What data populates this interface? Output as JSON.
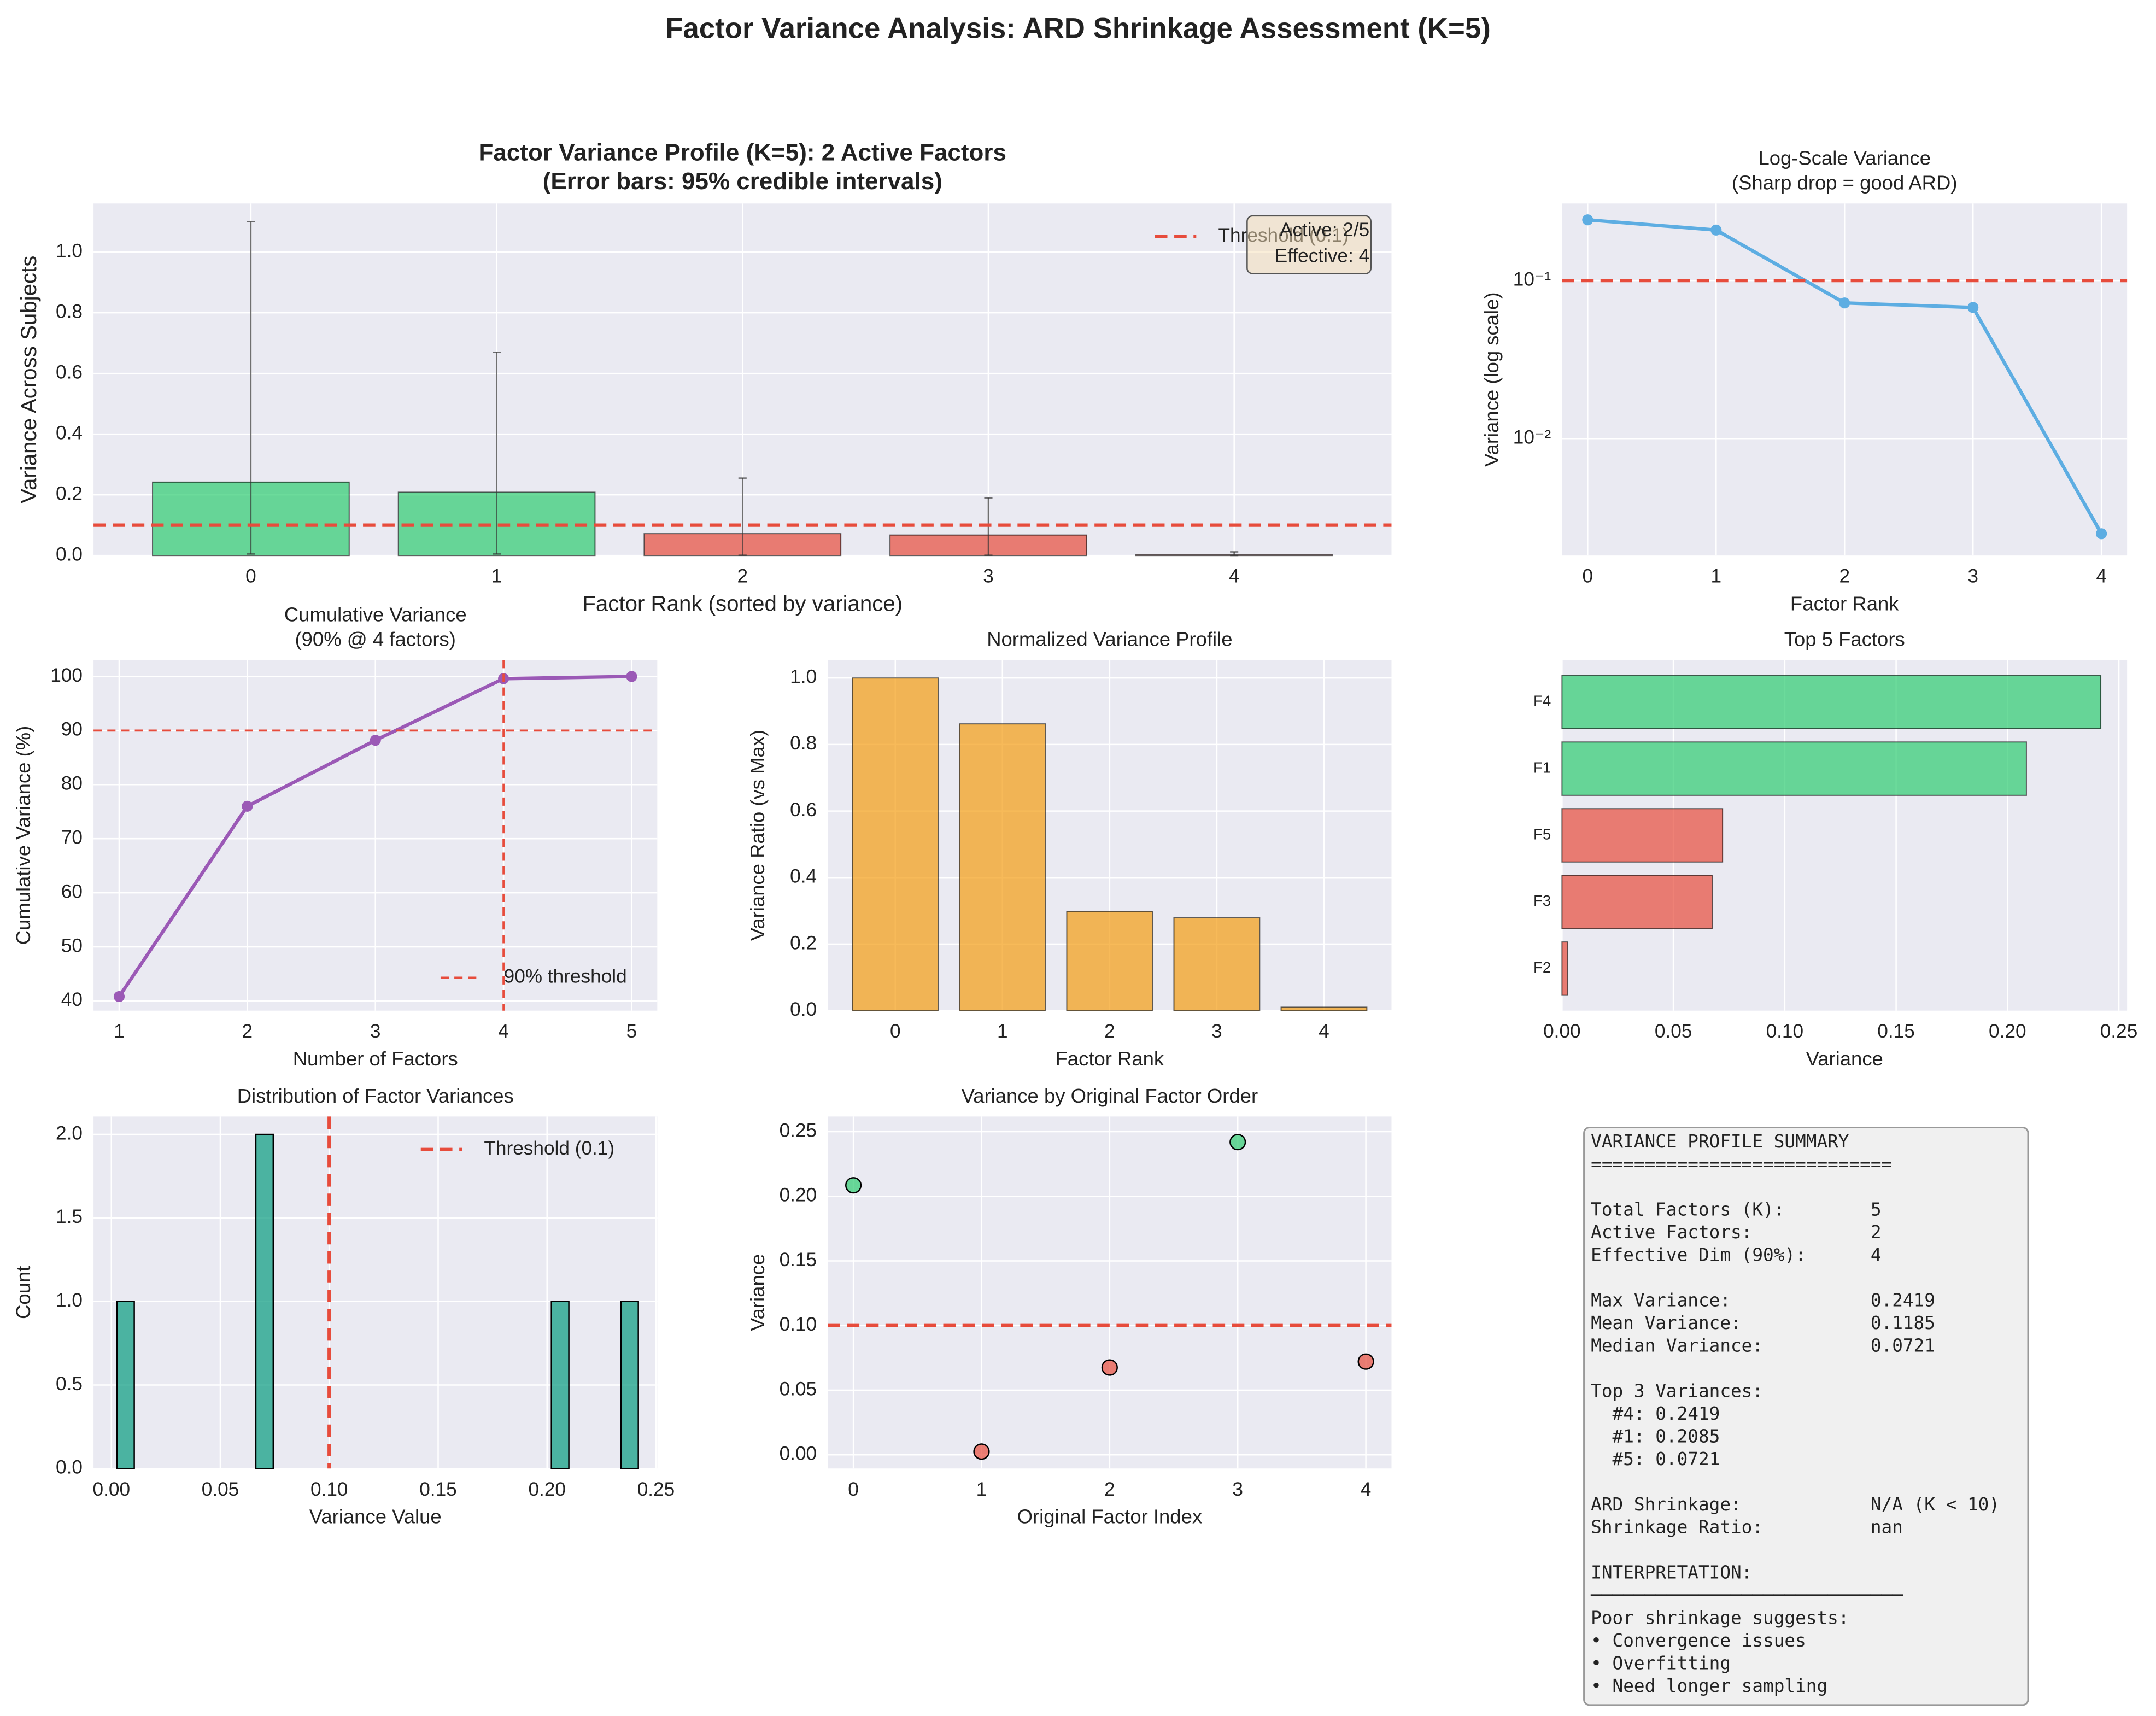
{
  "title": "Factor Variance Analysis: ARD Shrinkage Assessment (K=5)",
  "chart_data": [
    {
      "type": "bar",
      "title": [
        "Factor Variance Profile (K=5): 2 Active Factors",
        "(Error bars: 95% credible intervals)"
      ],
      "x": [
        0,
        1,
        2,
        3,
        4
      ],
      "values": [
        0.2419,
        0.2085,
        0.0721,
        0.0675,
        0.0025
      ],
      "ci_lower": [
        0.005,
        0.005,
        0.001,
        0.001,
        0.0002
      ],
      "ci_upper": [
        1.1,
        0.67,
        0.255,
        0.19,
        0.012
      ],
      "colors": [
        "#2ecc71",
        "#2ecc71",
        "#e74c3c",
        "#e74c3c",
        "#e74c3c"
      ],
      "xlim": [
        -0.64,
        4.64
      ],
      "ylim": [
        0,
        1.16
      ],
      "xticks": [
        0,
        1,
        2,
        3,
        4
      ],
      "yticks": [
        {
          "value": 0,
          "label": "0.0"
        },
        0.2,
        0.4,
        0.6,
        0.8,
        {
          "value": 1,
          "label": "1.0"
        }
      ],
      "xlabel": "Factor Rank (sorted by variance)",
      "ylabel": "Variance Across Subjects",
      "reference_lines": [
        {
          "axis": "y",
          "value": 0.1,
          "label": "Threshold (0.1)",
          "color": "#e74c3c",
          "width": 2.5
        }
      ],
      "legend": "upper right",
      "annotation": [
        "Active: 2/5",
        "Effective: 4"
      ],
      "grid": true
    },
    {
      "type": "line",
      "title": [
        "Log-Scale Variance",
        "(Sharp drop = good ARD)"
      ],
      "x": [
        0,
        1,
        2,
        3,
        4
      ],
      "values": [
        0.2419,
        0.2085,
        0.0721,
        0.0675,
        0.0025
      ],
      "color": "#5dade2",
      "log_y": true,
      "xlim": [
        -0.2,
        4.2
      ],
      "ylim": [
        0.00182,
        0.307
      ],
      "xticks": [
        0,
        1,
        2,
        3,
        4
      ],
      "yticks": [
        {
          "value": 0.01,
          "label": "10⁻²"
        },
        {
          "value": 0.1,
          "label": "10⁻¹"
        }
      ],
      "xlabel": "Factor Rank",
      "ylabel": "Variance (log scale)",
      "reference_lines": [
        {
          "axis": "y",
          "value": 0.1,
          "color": "#e74c3c",
          "width": 2.5
        }
      ],
      "grid": true
    },
    {
      "type": "line",
      "title": [
        "Cumulative Variance",
        "(90% @ 4 factors)"
      ],
      "x": [
        1,
        2,
        3,
        4,
        5
      ],
      "values": [
        40.8,
        76.0,
        88.2,
        99.6,
        100
      ],
      "color": "#9b59b6",
      "xlim": [
        0.8,
        5.2
      ],
      "ylim": [
        38.2,
        103.05
      ],
      "xticks": [
        1,
        2,
        3,
        4,
        5
      ],
      "yticks": [
        40,
        50,
        60,
        70,
        80,
        90,
        100
      ],
      "xlabel": "Number of Factors",
      "ylabel": "Cumulative Variance (%)",
      "reference_lines": [
        {
          "axis": "y",
          "value": 90,
          "label": "90% threshold",
          "color": "#e74c3c",
          "width": 1.5
        },
        {
          "axis": "x",
          "value": 4,
          "color": "#e74c3c",
          "width": 1.5
        }
      ],
      "legend": "lower right",
      "grid": true
    },
    {
      "type": "bar",
      "title": [
        "Normalized Variance Profile"
      ],
      "x": [
        0,
        1,
        2,
        3,
        4
      ],
      "values": [
        1,
        0.862,
        0.298,
        0.279,
        0.0103
      ],
      "color": "#f39c12",
      "xlim": [
        -0.63,
        4.63
      ],
      "ylim": [
        0,
        1.054
      ],
      "xticks": [
        0,
        1,
        2,
        3,
        4
      ],
      "yticks": [
        {
          "value": 0,
          "label": "0.0"
        },
        0.2,
        0.4,
        0.6,
        0.8,
        {
          "value": 1,
          "label": "1.0"
        }
      ],
      "xlabel": "Factor Rank",
      "ylabel": "Variance Ratio (vs Max)",
      "grid": true
    },
    {
      "type": "barh",
      "title": [
        "Top 5 Factors"
      ],
      "categories": [
        "F4",
        "F1",
        "F5",
        "F3",
        "F2"
      ],
      "values": [
        0.2419,
        0.2085,
        0.0721,
        0.0675,
        0.0025
      ],
      "colors": [
        "#2ecc71",
        "#2ecc71",
        "#e74c3c",
        "#e74c3c",
        "#e74c3c"
      ],
      "xlim": [
        0,
        0.2537
      ],
      "xticks": [
        {
          "value": 0,
          "label": "0.00"
        },
        0.05,
        {
          "value": 0.1,
          "label": "0.10"
        },
        0.15,
        {
          "value": 0.2,
          "label": "0.20"
        },
        0.25
      ],
      "xlabel": "Variance",
      "grid": true
    },
    {
      "type": "histogram",
      "title": [
        "Distribution of Factor Variances"
      ],
      "bins": [
        0.0025,
        0.0105,
        0.0185,
        0.0264,
        0.0344,
        0.0424,
        0.0504,
        0.0584,
        0.0663,
        0.0743,
        0.0823,
        0.0903,
        0.0983,
        0.1062,
        0.1142,
        0.1222,
        0.1302,
        0.1382,
        0.1461,
        0.1541,
        0.1621,
        0.1701,
        0.1781,
        0.186,
        0.194,
        0.202,
        0.21,
        0.218,
        0.2259,
        0.2339,
        0.2419
      ],
      "counts": [
        1,
        0,
        0,
        0,
        0,
        0,
        0,
        0,
        2,
        0,
        0,
        0,
        0,
        0,
        0,
        0,
        0,
        0,
        0,
        0,
        0,
        0,
        0,
        0,
        0,
        1,
        0,
        0,
        0,
        1
      ],
      "color": "#16a085",
      "xlim": [
        -0.0082,
        0.2506
      ],
      "ylim": [
        0,
        2.107
      ],
      "xticks": [
        {
          "value": 0,
          "label": "0.00"
        },
        0.05,
        {
          "value": 0.1,
          "label": "0.10"
        },
        0.15,
        {
          "value": 0.2,
          "label": "0.20"
        },
        0.25
      ],
      "yticks": [
        {
          "value": 0,
          "label": "0.0"
        },
        0.5,
        {
          "value": 1,
          "label": "1.0"
        },
        1.5,
        {
          "value": 2,
          "label": "2.0"
        }
      ],
      "xlabel": "Variance Value",
      "ylabel": "Count",
      "reference_lines": [
        {
          "axis": "x",
          "value": 0.1,
          "label": "Threshold (0.1)",
          "color": "#e74c3c",
          "width": 2.5
        }
      ],
      "legend": "upper right",
      "grid": true
    },
    {
      "type": "scatter",
      "title": [
        "Variance by Original Factor Order"
      ],
      "x": [
        0,
        1,
        2,
        3,
        4
      ],
      "values": [
        0.2085,
        0.0025,
        0.0675,
        0.2419,
        0.0721
      ],
      "colors": [
        "#2ecc71",
        "#e74c3c",
        "#e74c3c",
        "#2ecc71",
        "#e74c3c"
      ],
      "xlim": [
        -0.2,
        4.2
      ],
      "ylim": [
        -0.0106,
        0.2617
      ],
      "xticks": [
        0,
        1,
        2,
        3,
        4
      ],
      "yticks": [
        {
          "value": 0,
          "label": "0.00"
        },
        0.05,
        {
          "value": 0.1,
          "label": "0.10"
        },
        0.15,
        {
          "value": 0.2,
          "label": "0.20"
        },
        0.25
      ],
      "xlabel": "Original Factor Index",
      "ylabel": "Variance",
      "reference_lines": [
        {
          "axis": "y",
          "value": 0.1,
          "color": "#e74c3c",
          "width": 2.5
        }
      ],
      "grid": true
    }
  ],
  "summary": [
    [
      "VARIANCE PROFILE SUMMARY",
      "============================"
    ],
    [
      "Total Factors (K):        5",
      "Active Factors:           2",
      "Effective Dim (90%):      4"
    ],
    [
      "Max Variance:             0.2419",
      "Mean Variance:            0.1185",
      "Median Variance:          0.0721"
    ],
    [
      "Top 3 Variances:",
      "  #4: 0.2419",
      "  #1: 0.2085",
      "  #5: 0.0721"
    ],
    [
      "ARD Shrinkage:            N/A (K < 10)",
      "Shrinkage Ratio:          nan"
    ],
    [
      "INTERPRETATION:",
      "─────────────────────────────",
      "Poor shrinkage suggests:",
      "• Convergence issues",
      "• Overfitting",
      "• Need longer sampling"
    ]
  ]
}
